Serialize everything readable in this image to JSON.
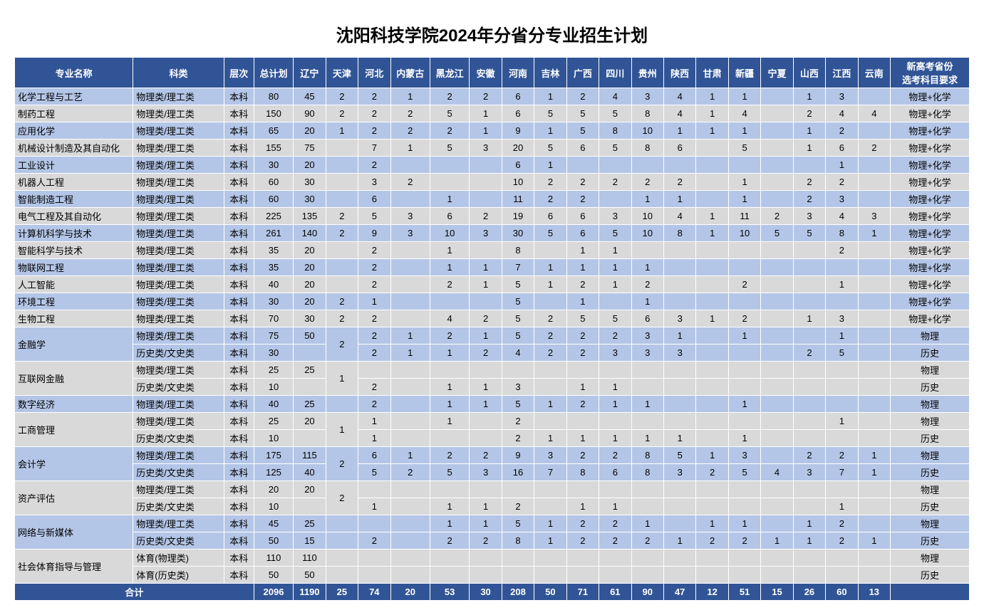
{
  "title": "沈阳科技学院2024年分省分专业招生计划",
  "headers": [
    "专业名称",
    "科类",
    "层次",
    "总计划",
    "辽宁",
    "天津",
    "河北",
    "内蒙古",
    "黑龙江",
    "安徽",
    "河南",
    "吉林",
    "广西",
    "四川",
    "贵州",
    "陕西",
    "甘肃",
    "新疆",
    "宁夏",
    "山西",
    "江西",
    "云南",
    "新高考省份\n选考科目要求"
  ],
  "header_bg": "#305496",
  "header_fg": "#ffffff",
  "row_odd_bg": "#b4c6e7",
  "row_even_bg": "#d9d9d9",
  "total_label": "合计",
  "totals": [
    "2096",
    "1190",
    "25",
    "74",
    "20",
    "53",
    "30",
    "208",
    "50",
    "71",
    "61",
    "90",
    "47",
    "12",
    "51",
    "15",
    "26",
    "60",
    "13",
    ""
  ],
  "rows": [
    {
      "major": "化学工程与工艺",
      "cat": "物理类/理工类",
      "lvl": "本科",
      "plan": "80",
      "v": [
        "45",
        "2",
        "2",
        "1",
        "2",
        "2",
        "6",
        "1",
        "2",
        "4",
        "3",
        "4",
        "1",
        "1",
        "",
        "1",
        "3",
        ""
      ],
      "req": "物理+化学",
      "span_major": 1,
      "span_tj": 1
    },
    {
      "major": "制药工程",
      "cat": "物理类/理工类",
      "lvl": "本科",
      "plan": "150",
      "v": [
        "90",
        "2",
        "2",
        "2",
        "5",
        "1",
        "6",
        "5",
        "5",
        "5",
        "8",
        "4",
        "1",
        "4",
        "",
        "2",
        "4",
        "4"
      ],
      "req": "物理+化学",
      "span_major": 1,
      "span_tj": 1
    },
    {
      "major": "应用化学",
      "cat": "物理类/理工类",
      "lvl": "本科",
      "plan": "65",
      "v": [
        "20",
        "1",
        "2",
        "2",
        "2",
        "1",
        "9",
        "1",
        "5",
        "8",
        "10",
        "1",
        "1",
        "1",
        "",
        "1",
        "2",
        ""
      ],
      "req": "物理+化学",
      "span_major": 1,
      "span_tj": 1
    },
    {
      "major": "机械设计制造及其自动化",
      "cat": "物理类/理工类",
      "lvl": "本科",
      "plan": "155",
      "v": [
        "75",
        "",
        "7",
        "1",
        "5",
        "3",
        "20",
        "5",
        "6",
        "5",
        "8",
        "6",
        "",
        "5",
        "",
        "1",
        "6",
        "2"
      ],
      "req": "物理+化学",
      "span_major": 1,
      "span_tj": 1
    },
    {
      "major": "工业设计",
      "cat": "物理类/理工类",
      "lvl": "本科",
      "plan": "30",
      "v": [
        "20",
        "",
        "2",
        "",
        "",
        "",
        "6",
        "1",
        "",
        "",
        "",
        "",
        "",
        "",
        "",
        "",
        "1",
        ""
      ],
      "req": "物理+化学",
      "span_major": 1,
      "span_tj": 1
    },
    {
      "major": "机器人工程",
      "cat": "物理类/理工类",
      "lvl": "本科",
      "plan": "60",
      "v": [
        "30",
        "",
        "3",
        "2",
        "",
        "",
        "10",
        "2",
        "2",
        "2",
        "2",
        "2",
        "",
        "1",
        "",
        "2",
        "2",
        ""
      ],
      "req": "物理+化学",
      "span_major": 1,
      "span_tj": 1
    },
    {
      "major": "智能制造工程",
      "cat": "物理类/理工类",
      "lvl": "本科",
      "plan": "60",
      "v": [
        "30",
        "",
        "6",
        "",
        "1",
        "",
        "11",
        "2",
        "2",
        "",
        "1",
        "1",
        "",
        "1",
        "",
        "2",
        "3",
        ""
      ],
      "req": "物理+化学",
      "span_major": 1,
      "span_tj": 1
    },
    {
      "major": "电气工程及其自动化",
      "cat": "物理类/理工类",
      "lvl": "本科",
      "plan": "225",
      "v": [
        "135",
        "2",
        "5",
        "3",
        "6",
        "2",
        "19",
        "6",
        "6",
        "3",
        "10",
        "4",
        "1",
        "11",
        "2",
        "3",
        "4",
        "3"
      ],
      "req": "物理+化学",
      "span_major": 1,
      "span_tj": 1
    },
    {
      "major": "计算机科学与技术",
      "cat": "物理类/理工类",
      "lvl": "本科",
      "plan": "261",
      "v": [
        "140",
        "2",
        "9",
        "3",
        "10",
        "3",
        "30",
        "5",
        "6",
        "5",
        "10",
        "8",
        "1",
        "10",
        "5",
        "5",
        "8",
        "1"
      ],
      "req": "物理+化学",
      "span_major": 1,
      "span_tj": 1
    },
    {
      "major": "智能科学与技术",
      "cat": "物理类/理工类",
      "lvl": "本科",
      "plan": "35",
      "v": [
        "20",
        "",
        "2",
        "",
        "1",
        "",
        "8",
        "",
        "1",
        "1",
        "",
        "",
        "",
        "",
        "",
        "",
        "2",
        ""
      ],
      "req": "物理+化学",
      "span_major": 1,
      "span_tj": 1
    },
    {
      "major": "物联网工程",
      "cat": "物理类/理工类",
      "lvl": "本科",
      "plan": "35",
      "v": [
        "20",
        "",
        "2",
        "",
        "1",
        "1",
        "7",
        "1",
        "1",
        "1",
        "1",
        "",
        "",
        "",
        "",
        "",
        "",
        ""
      ],
      "req": "物理+化学",
      "span_major": 1,
      "span_tj": 1
    },
    {
      "major": "人工智能",
      "cat": "物理类/理工类",
      "lvl": "本科",
      "plan": "40",
      "v": [
        "20",
        "",
        "2",
        "",
        "2",
        "1",
        "5",
        "1",
        "2",
        "1",
        "2",
        "",
        "",
        "2",
        "",
        "",
        "1",
        ""
      ],
      "req": "物理+化学",
      "span_major": 1,
      "span_tj": 1
    },
    {
      "major": "环境工程",
      "cat": "物理类/理工类",
      "lvl": "本科",
      "plan": "30",
      "v": [
        "20",
        "2",
        "1",
        "",
        "",
        "",
        "5",
        "",
        "1",
        "",
        "1",
        "",
        "",
        "",
        "",
        "",
        "",
        ""
      ],
      "req": "物理+化学",
      "span_major": 1,
      "span_tj": 1
    },
    {
      "major": "生物工程",
      "cat": "物理类/理工类",
      "lvl": "本科",
      "plan": "70",
      "v": [
        "30",
        "2",
        "2",
        "",
        "4",
        "2",
        "5",
        "2",
        "5",
        "5",
        "6",
        "3",
        "1",
        "2",
        "",
        "1",
        "3",
        ""
      ],
      "req": "物理+化学",
      "span_major": 1,
      "span_tj": 1
    },
    {
      "major": "金融学",
      "cat": "物理类/理工类",
      "lvl": "本科",
      "plan": "75",
      "v": [
        "50",
        "",
        "2",
        "1",
        "2",
        "1",
        "5",
        "2",
        "2",
        "2",
        "3",
        "1",
        "",
        "1",
        "",
        "",
        "1",
        ""
      ],
      "req": "物理",
      "span_major": 2,
      "span_tj": 2,
      "tj": "2"
    },
    {
      "major": "",
      "cat": "历史类/文史类",
      "lvl": "本科",
      "plan": "30",
      "v": [
        "",
        "",
        "2",
        "1",
        "1",
        "2",
        "4",
        "2",
        "2",
        "3",
        "3",
        "3",
        "",
        "",
        "",
        "2",
        "5",
        ""
      ],
      "req": "历史",
      "span_major": 0,
      "span_tj": 0
    },
    {
      "major": "互联网金融",
      "cat": "物理类/理工类",
      "lvl": "本科",
      "plan": "25",
      "v": [
        "25",
        "",
        "",
        "",
        "",
        "",
        "",
        "",
        "",
        "",
        "",
        "",
        "",
        "",
        "",
        "",
        "",
        ""
      ],
      "req": "物理",
      "span_major": 2,
      "span_tj": 2,
      "tj": "1"
    },
    {
      "major": "",
      "cat": "历史类/文史类",
      "lvl": "本科",
      "plan": "10",
      "v": [
        "",
        "",
        "2",
        "",
        "1",
        "1",
        "3",
        "",
        "1",
        "1",
        "",
        "",
        "",
        "",
        "",
        "",
        "",
        ""
      ],
      "req": "历史",
      "span_major": 0,
      "span_tj": 0
    },
    {
      "major": "数字经济",
      "cat": "物理类/理工类",
      "lvl": "本科",
      "plan": "40",
      "v": [
        "25",
        "",
        "2",
        "",
        "1",
        "1",
        "5",
        "1",
        "2",
        "1",
        "1",
        "",
        "",
        "1",
        "",
        "",
        "",
        ""
      ],
      "req": "物理",
      "span_major": 1,
      "span_tj": 1
    },
    {
      "major": "工商管理",
      "cat": "物理类/理工类",
      "lvl": "本科",
      "plan": "25",
      "v": [
        "20",
        "",
        "1",
        "",
        "1",
        "",
        "2",
        "",
        "",
        "",
        "",
        "",
        "",
        "",
        "",
        "",
        "1",
        ""
      ],
      "req": "物理",
      "span_major": 2,
      "span_tj": 2,
      "tj": "1"
    },
    {
      "major": "",
      "cat": "历史类/文史类",
      "lvl": "本科",
      "plan": "10",
      "v": [
        "",
        "",
        "1",
        "",
        "",
        "",
        "2",
        "1",
        "1",
        "1",
        "1",
        "1",
        "",
        "1",
        "",
        "",
        "",
        ""
      ],
      "req": "历史",
      "span_major": 0,
      "span_tj": 0
    },
    {
      "major": "会计学",
      "cat": "物理类/理工类",
      "lvl": "本科",
      "plan": "175",
      "v": [
        "115",
        "",
        "6",
        "1",
        "2",
        "2",
        "9",
        "3",
        "2",
        "2",
        "8",
        "5",
        "1",
        "3",
        "",
        "2",
        "2",
        "1"
      ],
      "req": "物理",
      "span_major": 2,
      "span_tj": 2,
      "tj": "2"
    },
    {
      "major": "",
      "cat": "历史类/文史类",
      "lvl": "本科",
      "plan": "125",
      "v": [
        "40",
        "",
        "5",
        "2",
        "5",
        "3",
        "16",
        "7",
        "8",
        "6",
        "8",
        "3",
        "2",
        "5",
        "4",
        "3",
        "7",
        "1"
      ],
      "req": "历史",
      "span_major": 0,
      "span_tj": 0
    },
    {
      "major": "资产评估",
      "cat": "物理类/理工类",
      "lvl": "本科",
      "plan": "20",
      "v": [
        "20",
        "",
        "",
        "",
        "",
        "",
        "",
        "",
        "",
        "",
        "",
        "",
        "",
        "",
        "",
        "",
        "",
        ""
      ],
      "req": "物理",
      "span_major": 2,
      "span_tj": 2,
      "tj": "2"
    },
    {
      "major": "",
      "cat": "历史类/文史类",
      "lvl": "本科",
      "plan": "10",
      "v": [
        "",
        "",
        "1",
        "",
        "1",
        "1",
        "2",
        "",
        "1",
        "1",
        "",
        "",
        "",
        "",
        "",
        "",
        "1",
        ""
      ],
      "req": "历史",
      "span_major": 0,
      "span_tj": 0
    },
    {
      "major": "网络与新媒体",
      "cat": "物理类/理工类",
      "lvl": "本科",
      "plan": "45",
      "v": [
        "25",
        "",
        "",
        "",
        "1",
        "1",
        "5",
        "1",
        "2",
        "2",
        "1",
        "",
        "1",
        "1",
        "",
        "1",
        "2",
        ""
      ],
      "req": "物理",
      "span_major": 2,
      "span_tj": 1,
      "tj": ""
    },
    {
      "major": "",
      "cat": "历史类/文史类",
      "lvl": "本科",
      "plan": "50",
      "v": [
        "15",
        "",
        "2",
        "",
        "2",
        "2",
        "8",
        "1",
        "2",
        "2",
        "2",
        "1",
        "2",
        "2",
        "1",
        "1",
        "2",
        "1"
      ],
      "req": "历史",
      "span_major": 0,
      "span_tj": 1
    },
    {
      "major": "社会体育指导与管理",
      "cat": "体育(物理类)",
      "lvl": "本科",
      "plan": "110",
      "v": [
        "110",
        "",
        "",
        "",
        "",
        "",
        "",
        "",
        "",
        "",
        "",
        "",
        "",
        "",
        "",
        "",
        "",
        ""
      ],
      "req": "物理",
      "span_major": 2,
      "span_tj": 1,
      "tj": ""
    },
    {
      "major": "",
      "cat": "体育(历史类)",
      "lvl": "本科",
      "plan": "50",
      "v": [
        "50",
        "",
        "",
        "",
        "",
        "",
        "",
        "",
        "",
        "",
        "",
        "",
        "",
        "",
        "",
        "",
        "",
        ""
      ],
      "req": "历史",
      "span_major": 0,
      "span_tj": 1
    }
  ]
}
